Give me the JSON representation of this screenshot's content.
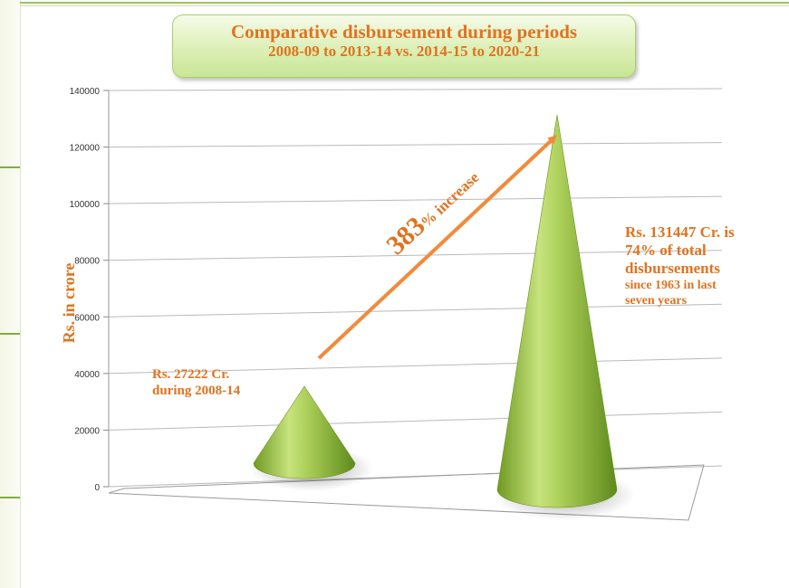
{
  "chart_data": {
    "type": "bar",
    "style": "3d-cone",
    "title": "Comparative disbursement during periods",
    "subtitle": "2008-09 to 2013-14  vs. 2014-15 to 2020-21",
    "ylabel": "Rs. in crore",
    "xlabel": "",
    "ylim": [
      0,
      140000
    ],
    "yticks": [
      "0",
      "20000",
      "40000",
      "60000",
      "80000",
      "100000",
      "120000",
      "140000"
    ],
    "grid": true,
    "categories": [
      "2008-09 to 2013-14",
      "2014-15 to 2020-21"
    ],
    "values": [
      27222,
      131447
    ],
    "colors": {
      "cone": "#9cc44a",
      "accent": "#e0731f"
    },
    "annotations": {
      "first": [
        "Rs. 27222 Cr.",
        "during 2008-14"
      ],
      "second_big": [
        "Rs. 131447 Cr. is",
        "74% of total",
        "disbursements"
      ],
      "second_small": [
        "since 1963 in last",
        "seven years"
      ],
      "increase_number": "383",
      "increase_text": "% increase"
    }
  }
}
